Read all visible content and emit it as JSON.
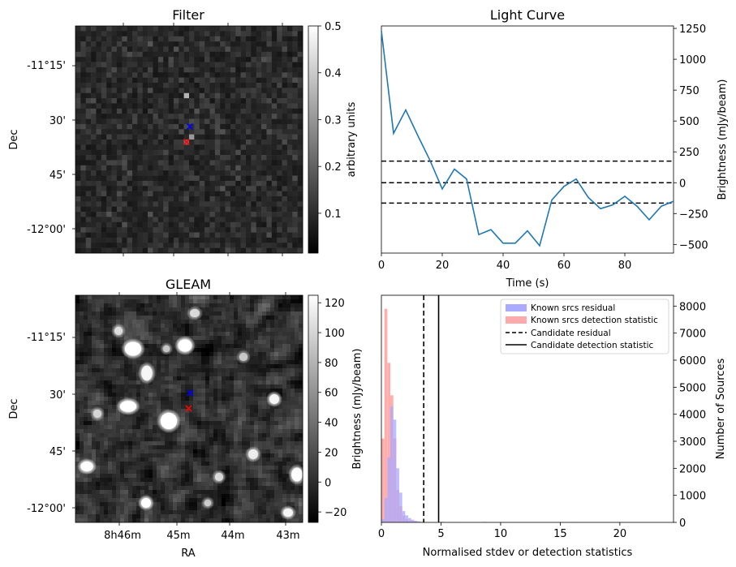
{
  "colors": {
    "blue_line": "#1f77b4",
    "hist_blue": "#aaaaff",
    "hist_red": "#ffaaaa",
    "marker_blue": "#0000ff",
    "marker_red": "#ff0000"
  },
  "chart_data": [
    {
      "type": "heatmap",
      "title": "Filter",
      "ylabel": "Dec",
      "y_ticks": [
        "-11°15'",
        "30'",
        "45'",
        "-12°00'"
      ],
      "colorbar": {
        "label": "arbitrary units",
        "ticks": [
          "0.1",
          "0.2",
          "0.3",
          "0.4",
          "0.5"
        ],
        "tick_values": [
          0.1,
          0.2,
          0.3,
          0.4,
          0.5
        ],
        "range": [
          0.015,
          0.5
        ],
        "colormap": "gray"
      },
      "markers": [
        {
          "name": "blue x",
          "color": "blue"
        },
        {
          "name": "red x",
          "color": "red"
        }
      ]
    },
    {
      "type": "line",
      "title": "Light Curve",
      "xlabel": "Time (s)",
      "ylabel": "Brightness (mJy/beam)",
      "xlim": [
        0,
        96
      ],
      "ylim": [
        -570,
        1270
      ],
      "x_ticks": [
        0,
        20,
        40,
        60,
        80
      ],
      "y_ticks": [
        -500,
        -250,
        0,
        250,
        500,
        750,
        1000,
        1250
      ],
      "series": [
        {
          "x": [
            0,
            4,
            8,
            12,
            16,
            20,
            24,
            28,
            32,
            36,
            40,
            44,
            48,
            52,
            56,
            60,
            64,
            68,
            72,
            76,
            80,
            84,
            88,
            92,
            96
          ],
          "y": [
            1230,
            400,
            590,
            380,
            180,
            -50,
            110,
            30,
            -420,
            -380,
            -490,
            -490,
            -390,
            -510,
            -140,
            -30,
            30,
            -120,
            -210,
            -180,
            -110,
            -190,
            -300,
            -190,
            -150
          ]
        }
      ],
      "hlines": [
        {
          "y": 175,
          "style": "dashed"
        },
        {
          "y": 0,
          "style": "dashed"
        },
        {
          "y": -165,
          "style": "dashed"
        }
      ]
    },
    {
      "type": "heatmap",
      "title": "GLEAM",
      "xlabel": "RA",
      "ylabel": "Dec",
      "x_ticks": [
        "8h46m",
        "45m",
        "44m",
        "43m"
      ],
      "y_ticks": [
        "-11°15'",
        "30'",
        "45'",
        "-12°00'"
      ],
      "colorbar": {
        "label": "Brightness (mJy/beam)",
        "ticks": [
          "−20",
          "0",
          "20",
          "40",
          "60",
          "80",
          "100",
          "120"
        ],
        "tick_values": [
          -20,
          0,
          20,
          40,
          60,
          80,
          100,
          120
        ],
        "range": [
          -27,
          125
        ],
        "colormap": "gray"
      },
      "markers": [
        {
          "name": "blue x",
          "color": "blue"
        },
        {
          "name": "red x",
          "color": "red"
        }
      ]
    },
    {
      "type": "bar",
      "subtype": "histogram",
      "xlabel": "Normalised stdev or detection statistics",
      "ylabel": "Number of Sources",
      "xlim": [
        0,
        24.5
      ],
      "ylim": [
        0,
        8400
      ],
      "x_ticks": [
        0,
        5,
        10,
        15,
        20
      ],
      "y_ticks": [
        0,
        1000,
        2000,
        3000,
        4000,
        5000,
        6000,
        7000,
        8000
      ],
      "bin_width": 0.25,
      "series": [
        {
          "name": "Known srcs residual",
          "bins_start": [
            0,
            0.25,
            0.5,
            0.75,
            1.0,
            1.25,
            1.5,
            1.75,
            2.0,
            2.25,
            2.5,
            2.75,
            3.0,
            3.25,
            3.5
          ],
          "values": [
            120,
            900,
            2400,
            4300,
            3800,
            2000,
            1100,
            420,
            260,
            160,
            100,
            60,
            40,
            20,
            10
          ]
        },
        {
          "name": "Known srcs detection statistic",
          "bins_start": [
            0,
            0.25,
            0.5,
            0.75,
            1.0,
            1.25,
            1.5,
            1.75,
            2.0,
            2.25,
            2.5,
            2.75,
            3.0,
            5.0,
            6.0,
            8.5,
            16.0
          ],
          "values": [
            3100,
            7900,
            5900,
            4700,
            3100,
            1200,
            600,
            250,
            120,
            80,
            50,
            30,
            20,
            20,
            15,
            20,
            12
          ]
        }
      ],
      "vlines": [
        {
          "name": "Candidate residual",
          "x": 3.55,
          "style": "dashed"
        },
        {
          "name": "Candidate detection statistic",
          "x": 4.8,
          "style": "solid"
        }
      ],
      "legend_position": "top-right"
    }
  ]
}
